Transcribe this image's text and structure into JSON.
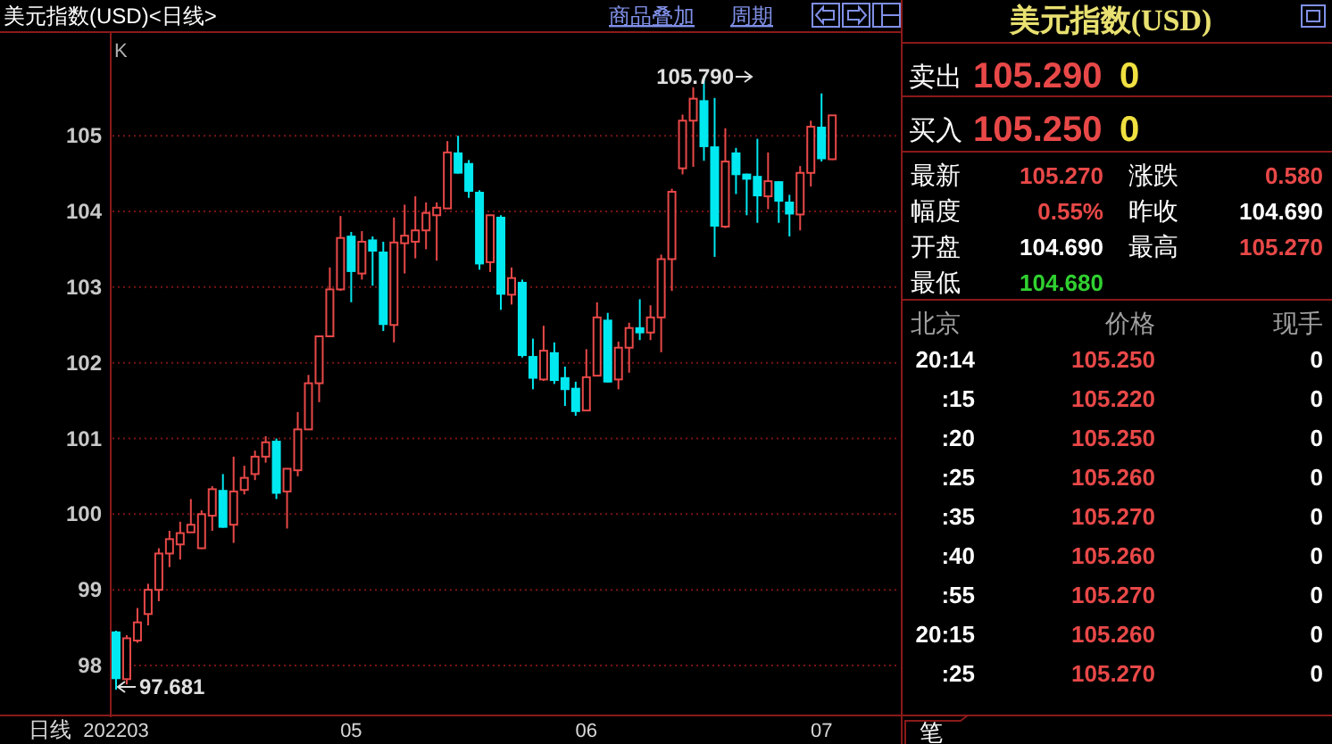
{
  "chart_data": [
    {
      "type": "candlestick",
      "title": "美元指数(USD)<日线>",
      "xlabel": "日线",
      "categories": [
        "202203",
        null,
        null,
        null,
        null,
        null,
        null,
        null,
        null,
        null,
        null,
        null,
        null,
        null,
        null,
        null,
        null,
        null,
        null,
        null,
        null,
        null,
        "05",
        null,
        null,
        null,
        null,
        null,
        null,
        null,
        null,
        null,
        null,
        null,
        null,
        null,
        null,
        null,
        null,
        null,
        null,
        null,
        null,
        null,
        "06",
        null,
        null,
        null,
        null,
        null,
        null,
        null,
        null,
        null,
        null,
        null,
        null,
        null,
        null,
        null,
        null,
        null,
        null,
        null,
        null,
        null,
        "07",
        null,
        null,
        null,
        null,
        null,
        null,
        null
      ],
      "ohlc": [
        [
          98.45,
          98.46,
          97.681,
          97.82
        ],
        [
          97.82,
          98.4,
          97.75,
          98.36
        ],
        [
          98.33,
          98.76,
          98.3,
          98.57
        ],
        [
          98.68,
          99.08,
          98.53,
          99.0
        ],
        [
          99.0,
          99.55,
          98.85,
          99.48
        ],
        [
          99.48,
          99.78,
          99.3,
          99.67
        ],
        [
          99.6,
          99.9,
          99.4,
          99.75
        ],
        [
          99.76,
          100.2,
          99.76,
          99.86
        ],
        [
          99.55,
          100.05,
          99.54,
          100.0
        ],
        [
          99.98,
          100.37,
          99.78,
          100.33
        ],
        [
          100.32,
          100.53,
          99.82,
          99.82
        ],
        [
          99.86,
          100.76,
          99.62,
          100.3
        ],
        [
          100.32,
          100.64,
          100.26,
          100.48
        ],
        [
          100.53,
          100.84,
          100.45,
          100.76
        ],
        [
          100.76,
          101.03,
          100.68,
          100.95
        ],
        [
          100.97,
          101.0,
          100.2,
          100.27
        ],
        [
          100.3,
          100.6,
          99.81,
          100.6
        ],
        [
          100.58,
          101.35,
          100.5,
          101.12
        ],
        [
          101.12,
          101.84,
          101.12,
          101.73
        ],
        [
          101.73,
          102.35,
          101.48,
          102.35
        ],
        [
          102.35,
          103.26,
          102.35,
          102.97
        ],
        [
          102.97,
          103.94,
          102.95,
          103.65
        ],
        [
          103.68,
          103.73,
          102.8,
          103.2
        ],
        [
          103.18,
          103.74,
          103.1,
          103.6
        ],
        [
          103.63,
          103.67,
          103.02,
          103.47
        ],
        [
          103.47,
          103.6,
          102.42,
          102.5
        ],
        [
          102.5,
          103.92,
          102.27,
          103.59
        ],
        [
          103.58,
          104.09,
          103.18,
          103.68
        ],
        [
          103.6,
          104.2,
          103.38,
          103.75
        ],
        [
          103.75,
          104.12,
          103.5,
          103.98
        ],
        [
          103.95,
          104.12,
          103.35,
          104.05
        ],
        [
          104.04,
          104.93,
          104.04,
          104.78
        ],
        [
          104.78,
          105.0,
          104.5,
          104.5
        ],
        [
          104.64,
          104.68,
          104.18,
          104.26
        ],
        [
          104.26,
          104.28,
          103.23,
          103.3
        ],
        [
          103.33,
          103.95,
          103.2,
          103.95
        ],
        [
          103.93,
          103.95,
          102.7,
          102.9
        ],
        [
          102.9,
          103.26,
          102.77,
          103.12
        ],
        [
          103.07,
          103.1,
          102.07,
          102.09
        ],
        [
          102.09,
          102.32,
          101.65,
          101.79
        ],
        [
          101.78,
          102.49,
          101.76,
          102.16
        ],
        [
          102.14,
          102.27,
          101.72,
          101.76
        ],
        [
          101.81,
          101.95,
          101.43,
          101.64
        ],
        [
          101.67,
          101.75,
          101.3,
          101.35
        ],
        [
          101.37,
          102.18,
          101.37,
          101.81
        ],
        [
          101.83,
          102.8,
          101.83,
          102.6
        ],
        [
          102.57,
          102.66,
          101.74,
          101.74
        ],
        [
          101.78,
          102.28,
          101.65,
          102.2
        ],
        [
          102.2,
          102.53,
          101.87,
          102.46
        ],
        [
          102.47,
          102.84,
          102.3,
          102.39
        ],
        [
          102.4,
          102.76,
          102.3,
          102.6
        ],
        [
          102.6,
          103.43,
          102.14,
          103.37
        ],
        [
          103.37,
          104.3,
          102.95,
          104.26
        ],
        [
          104.57,
          105.28,
          104.49,
          105.2
        ],
        [
          105.2,
          105.64,
          104.59,
          105.49
        ],
        [
          105.47,
          105.79,
          104.67,
          104.85
        ],
        [
          104.86,
          105.5,
          103.4,
          103.8
        ],
        [
          103.8,
          105.1,
          103.78,
          104.66
        ],
        [
          104.78,
          104.84,
          104.23,
          104.48
        ],
        [
          104.5,
          104.5,
          103.95,
          104.42
        ],
        [
          104.47,
          104.96,
          103.85,
          104.2
        ],
        [
          104.2,
          104.78,
          104.03,
          104.4
        ],
        [
          104.4,
          104.4,
          103.85,
          104.13
        ],
        [
          104.13,
          104.22,
          103.67,
          103.96
        ],
        [
          103.96,
          104.6,
          103.75,
          104.51
        ],
        [
          104.51,
          105.2,
          104.33,
          105.12
        ],
        [
          105.12,
          105.56,
          104.66,
          104.69
        ],
        [
          104.69,
          105.27,
          104.68,
          105.27
        ],
        null,
        null,
        null,
        null,
        null,
        null
      ],
      "ylim": [
        97.34,
        106.37
      ],
      "yticks": [
        98,
        99,
        100,
        101,
        102,
        103,
        104,
        105
      ],
      "grid": "y",
      "annotations": [
        "K",
        "商品叠加",
        "周期",
        "105.790",
        "97.681"
      ]
    },
    {
      "type": "other",
      "title": "美元指数(USD)",
      "annotations": [
        "卖出",
        "105.290",
        "0",
        "买入",
        "105.250",
        "0",
        "最新",
        "105.270",
        "涨跌",
        "0.580",
        "幅度",
        "0.55%",
        "昨收",
        "104.690",
        "开盘",
        "104.690",
        "最高",
        "105.270",
        "最低",
        "104.680",
        "北京",
        "价格",
        "现手",
        "20:14",
        "105.250",
        "0",
        ":15",
        "105.220",
        "0",
        ":20",
        "105.250",
        "0",
        ":25",
        "105.260",
        "0",
        ":35",
        "105.270",
        "0",
        ":40",
        "105.260",
        "0",
        ":55",
        "105.270",
        "0",
        "20:15",
        "105.260",
        "0",
        ":25",
        "105.270",
        "0",
        "笔"
      ]
    }
  ]
}
